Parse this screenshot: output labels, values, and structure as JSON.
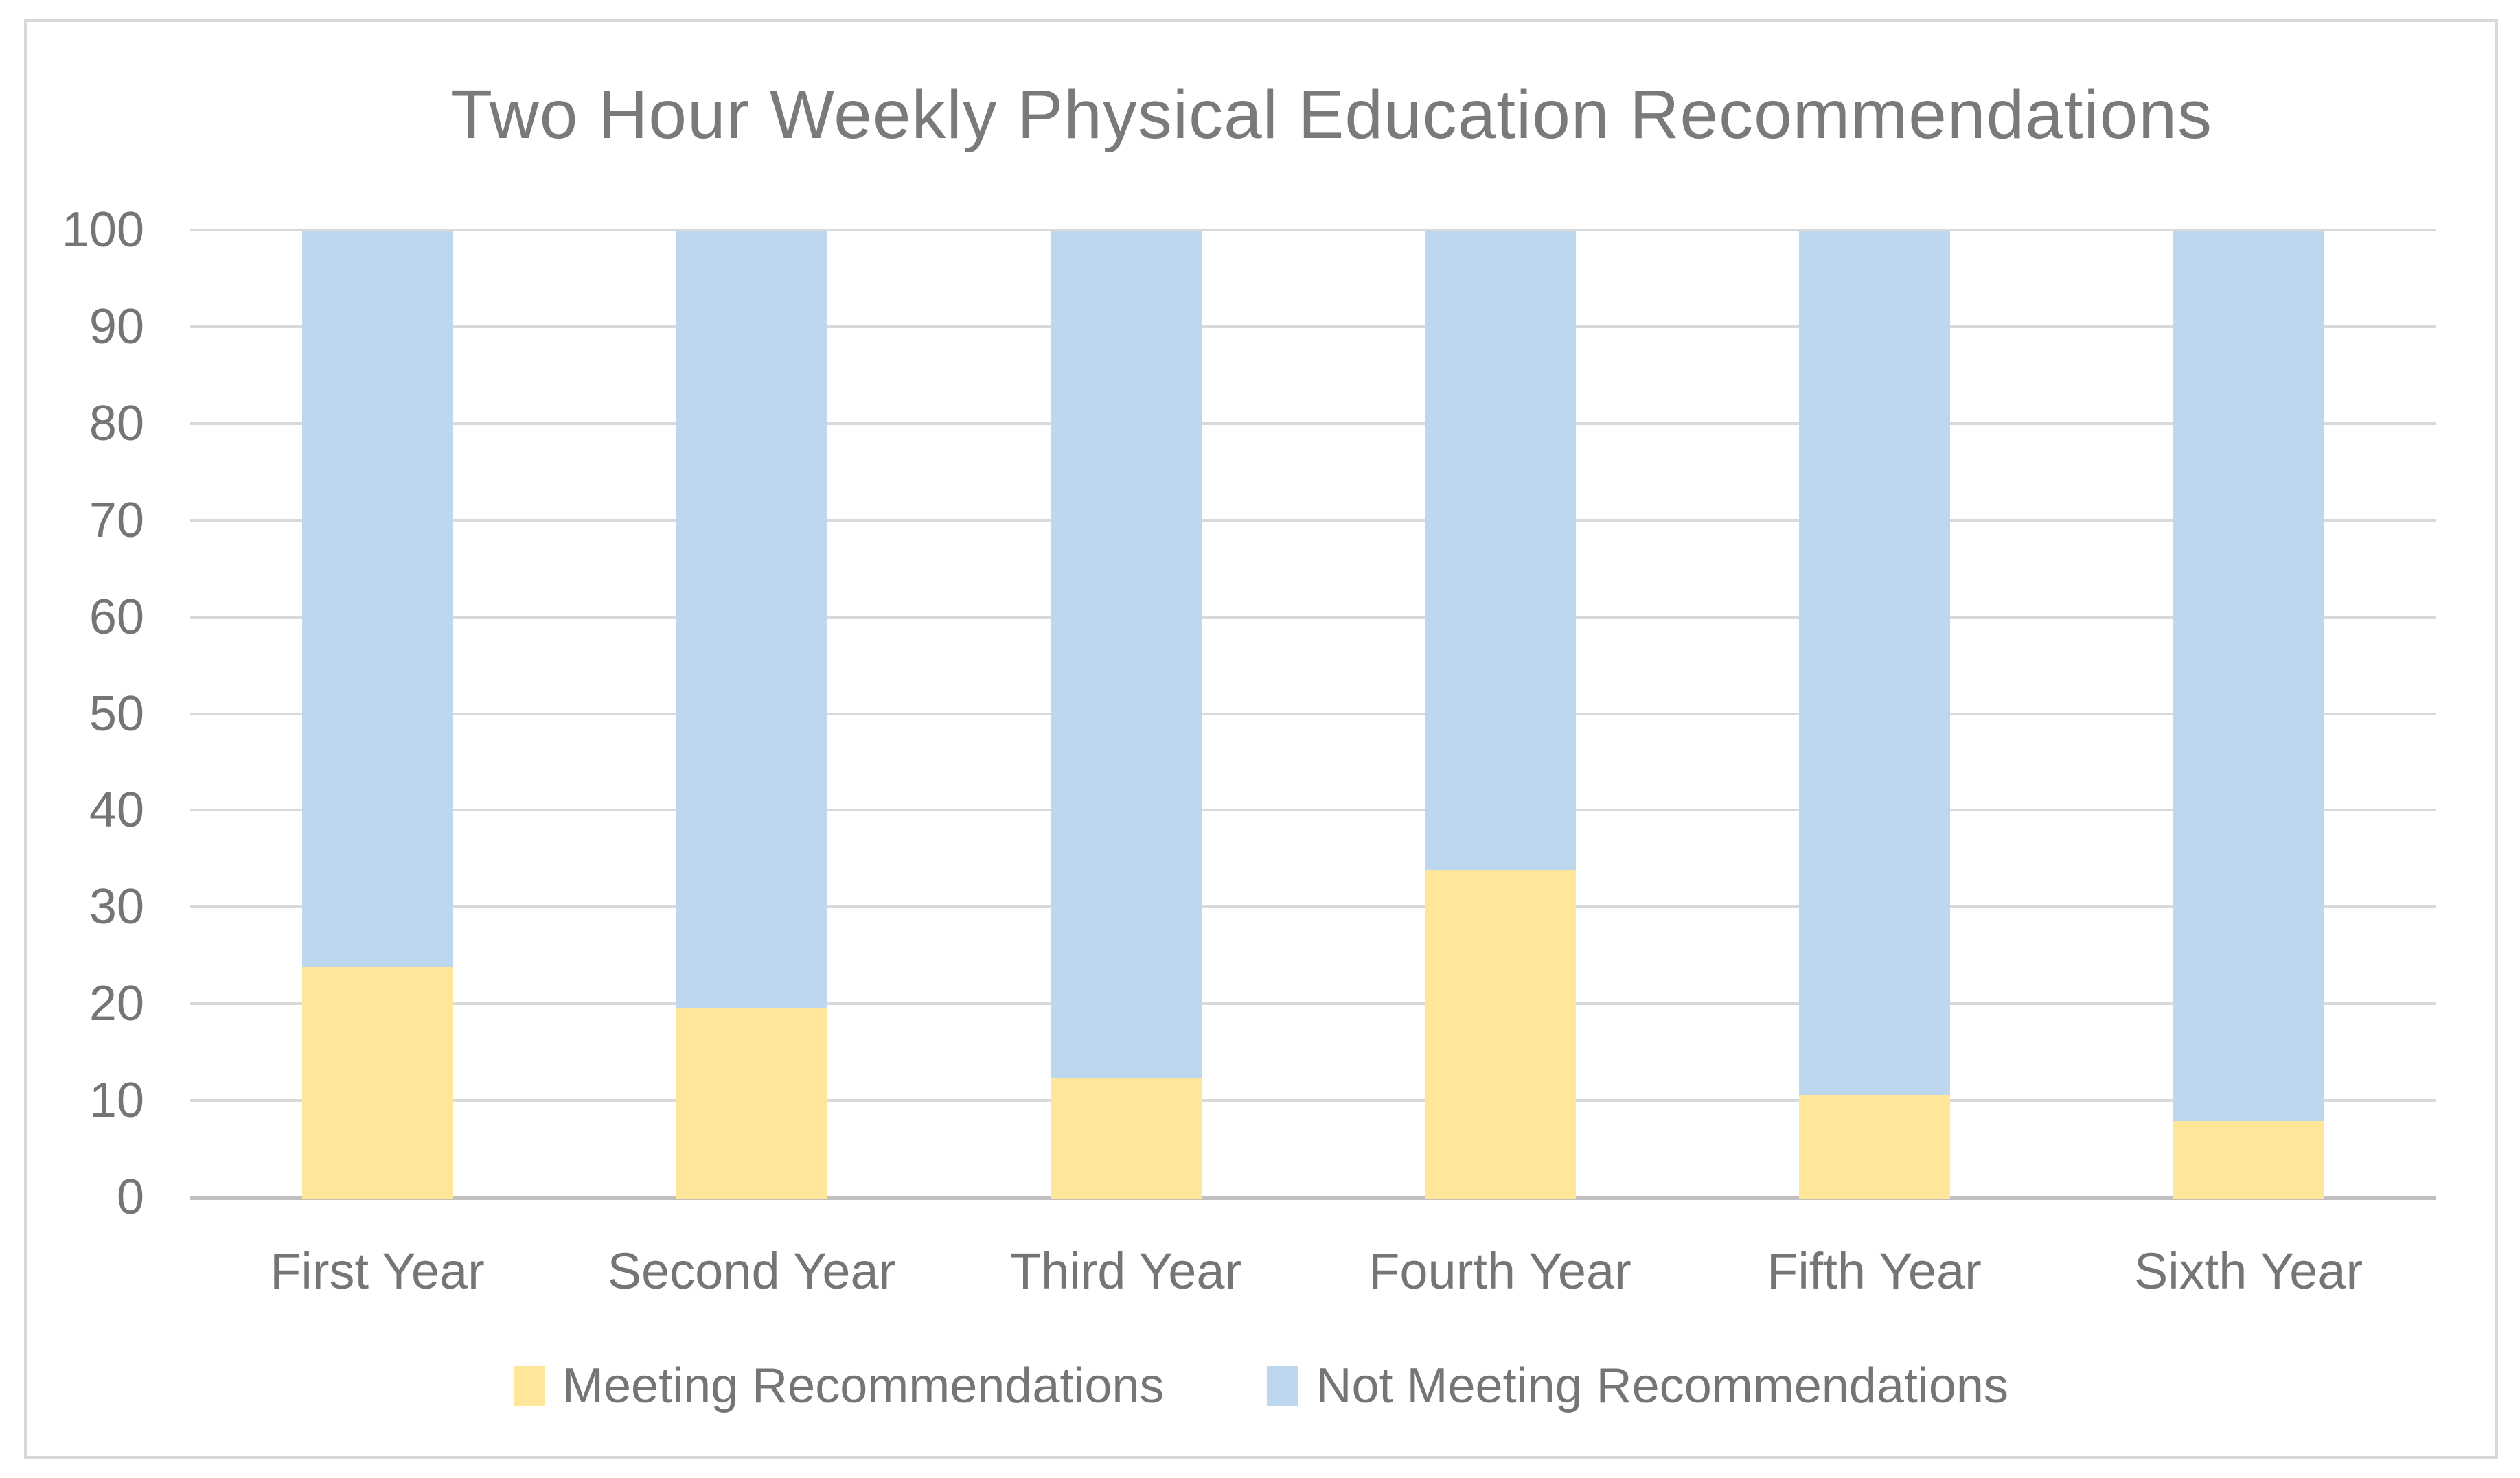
{
  "chart_data": {
    "type": "bar",
    "stacked": true,
    "percent_stacked": true,
    "title": "Two Hour Weekly Physical Education Recommendations",
    "categories": [
      "First Year",
      "Second Year",
      "Third Year",
      "Fourth Year",
      "Fifth Year",
      "Sixth Year"
    ],
    "series": [
      {
        "name": "Meeting Recommendations",
        "color": "#FFE699",
        "values": [
          24,
          19.7,
          12.5,
          33.9,
          10.7,
          8
        ]
      },
      {
        "name": "Not Meeting Recommendations",
        "color": "#BDD7EE",
        "values": [
          76,
          80.3,
          87.5,
          66.1,
          89.3,
          92
        ]
      }
    ],
    "xlabel": "",
    "ylabel": "",
    "ylim": [
      0,
      100
    ],
    "yticks": [
      0,
      10,
      20,
      30,
      40,
      50,
      60,
      70,
      80,
      90,
      100
    ],
    "grid": true,
    "legend_position": "bottom",
    "style": {
      "gridline_color": "#D9D9D9",
      "axis_line_color": "#BFBFBF",
      "frame_border_color": "#D9D9D9",
      "text_color": "#757575",
      "title_color": "#7a7a7a",
      "background": "#FFFFFF"
    }
  }
}
